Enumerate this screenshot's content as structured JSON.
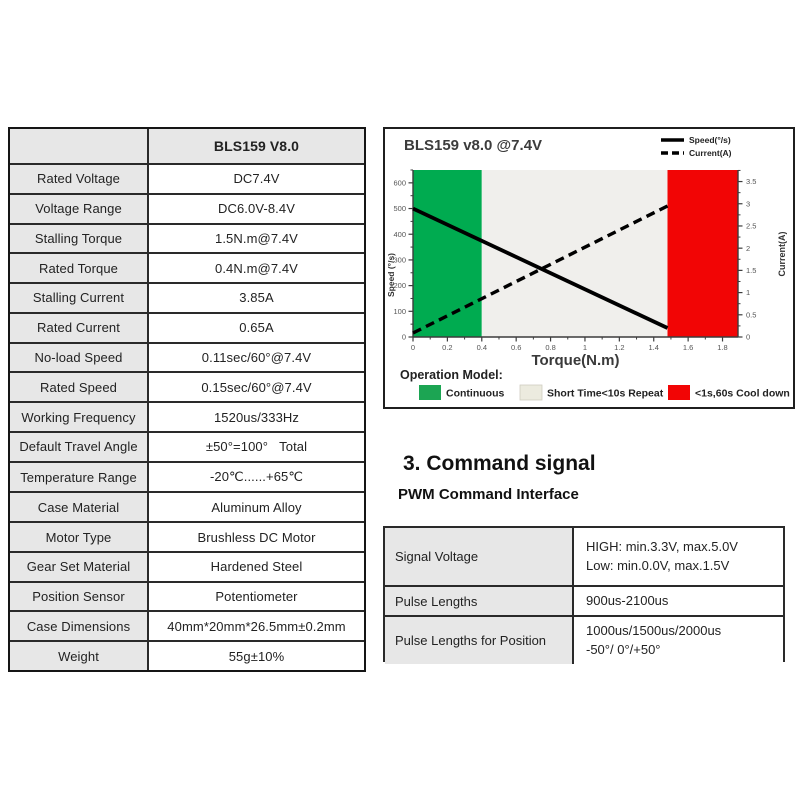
{
  "spec_table": {
    "header_product": "BLS159 V8.0",
    "rows": [
      {
        "label": "Rated Voltage",
        "value": "DC7.4V"
      },
      {
        "label": "Voltage Range",
        "value": "DC6.0V-8.4V"
      },
      {
        "label": "Stalling Torque",
        "value": "1.5N.m@7.4V"
      },
      {
        "label": "Rated Torque",
        "value": "0.4N.m@7.4V"
      },
      {
        "label": "Stalling Current",
        "value": "3.85A"
      },
      {
        "label": "Rated Current",
        "value": "0.65A"
      },
      {
        "label": "No-load Speed",
        "value": "0.11sec/60°@7.4V"
      },
      {
        "label": "Rated Speed",
        "value": "0.15sec/60°@7.4V"
      },
      {
        "label": "Working Frequency",
        "value": "1520us/333Hz"
      },
      {
        "label": "Default Travel Angle",
        "value": "±50°=100°   Total"
      },
      {
        "label": "Temperature Range",
        "value": "-20℃......+65℃"
      },
      {
        "label": "Case Material",
        "value": "Aluminum Alloy"
      },
      {
        "label": "Motor Type",
        "value": "Brushless DC Motor"
      },
      {
        "label": "Gear Set Material",
        "value": "Hardened Steel"
      },
      {
        "label": "Position Sensor",
        "value": "Potentiometer"
      },
      {
        "label": "Case Dimensions",
        "value": "40mm*20mm*26.5mm±0.2mm"
      },
      {
        "label": "Weight",
        "value": "55g±10%"
      }
    ]
  },
  "chart_data": {
    "type": "line",
    "title": "BLS159 v8.0 @7.4V",
    "xlabel": "Torque(N.m)",
    "ylabel_left": "Speed (°/s)",
    "ylabel_right": "Current(A)",
    "xlim": [
      0,
      1.89
    ],
    "ylim_left": [
      0,
      650
    ],
    "ylim_right": [
      0,
      3.76
    ],
    "xticks": [
      0,
      0.2,
      0.4,
      0.6,
      0.8,
      1,
      1.2,
      1.4,
      1.6,
      1.8
    ],
    "yticks_left": [
      0,
      100,
      200,
      300,
      400,
      500,
      600
    ],
    "yticks_right": [
      0,
      0.5,
      1,
      1.5,
      2,
      2.5,
      3,
      3.5
    ],
    "grid": false,
    "legend_position": "top-right",
    "series": [
      {
        "name": "Speed(°/s)",
        "axis": "left",
        "style": "solid",
        "points": [
          [
            0,
            500
          ],
          [
            1.48,
            35
          ]
        ]
      },
      {
        "name": "Current(A)",
        "axis": "right",
        "style": "dashed",
        "points": [
          [
            0,
            0.09
          ],
          [
            1.48,
            2.95
          ]
        ]
      }
    ],
    "zones": [
      {
        "label": "Continuous",
        "color": "#00ab50",
        "swatch": "#1ca553",
        "x": [
          0,
          0.4
        ]
      },
      {
        "label": "Short Time<10s Repeat",
        "color": "#f0efec",
        "swatch": "#ecebdf",
        "x": [
          0.4,
          1.48
        ]
      },
      {
        "label": "<1s,60s Cool down",
        "color": "#f20505",
        "swatch": "#f20505",
        "x": [
          1.48,
          1.89
        ]
      }
    ],
    "operation_model_label": "Operation Model:"
  },
  "command_section": {
    "title": "3. Command signal",
    "subtitle": "PWM Command Interface",
    "table": [
      {
        "label": "Signal Voltage",
        "lines": [
          "HIGH: min.3.3V, max.5.0V",
          "Low: min.0.0V, max.1.5V"
        ]
      },
      {
        "label": "Pulse Lengths",
        "lines": [
          "900us-2100us"
        ]
      },
      {
        "label": "Pulse Lengths for Position",
        "lines": [
          "1000us/1500us/2000us",
          "-50°/ 0°/+50°"
        ]
      }
    ]
  }
}
